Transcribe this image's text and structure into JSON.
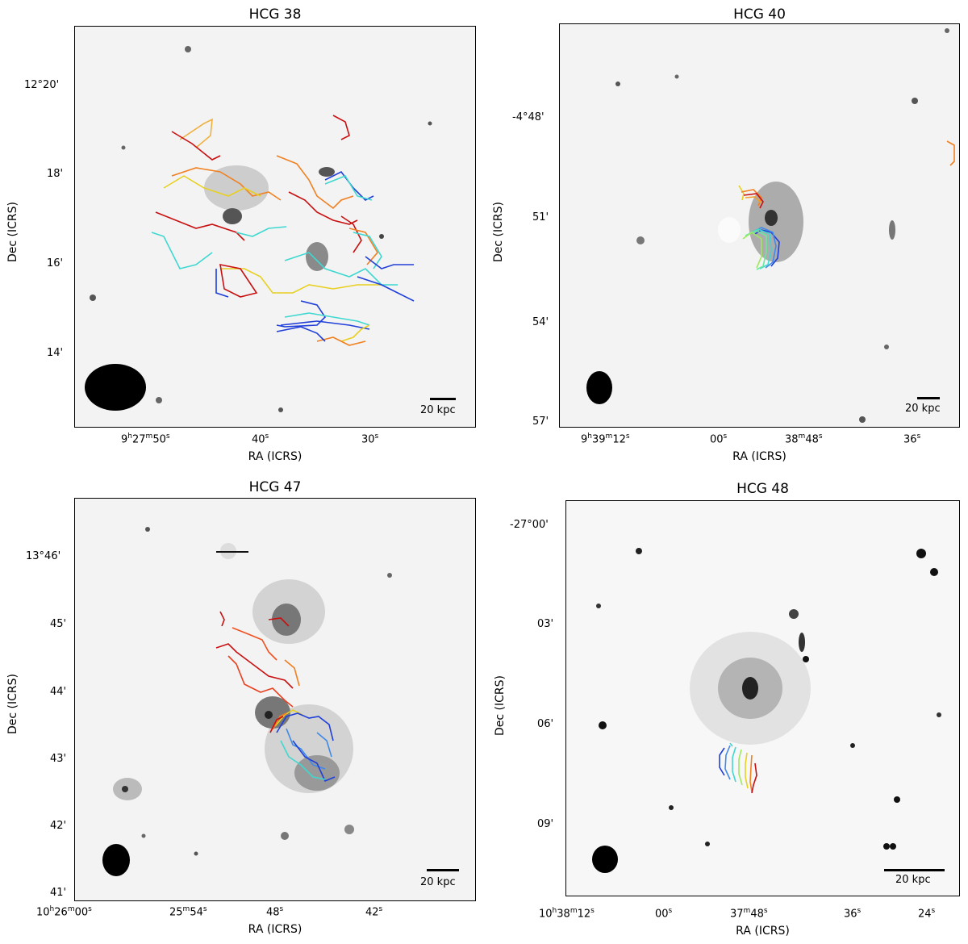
{
  "panels": [
    {
      "title": "HCG 38",
      "xlabel": "RA (ICRS)",
      "ylabel": "Dec (ICRS)",
      "scalebar": "20 kpc",
      "yticks": [
        "12°20'",
        "18'",
        "16'",
        "14'"
      ],
      "xticks": [
        {
          "h": "9",
          "m": "27",
          "s": "50"
        },
        {
          "s": "40"
        },
        {
          "s": "30"
        }
      ]
    },
    {
      "title": "HCG 40",
      "xlabel": "RA (ICRS)",
      "ylabel": "Dec (ICRS)",
      "scalebar": "20 kpc",
      "yticks": [
        "-4°48'",
        "51'",
        "54'",
        "57'"
      ],
      "xticks": [
        {
          "h": "9",
          "m": "39",
          "s": "12"
        },
        {
          "s": "00"
        },
        {
          "m": "38",
          "s": "48"
        },
        {
          "s": "36"
        }
      ]
    },
    {
      "title": "HCG 47",
      "xlabel": "RA (ICRS)",
      "ylabel": "Dec (ICRS)",
      "scalebar": "20 kpc",
      "yticks": [
        "13°46'",
        "45'",
        "44'",
        "43'",
        "42'",
        "41'"
      ],
      "xticks": [
        {
          "h": "10",
          "m": "26",
          "s": "00"
        },
        {
          "m": "25",
          "s": "54"
        },
        {
          "s": "48"
        },
        {
          "s": "42"
        }
      ]
    },
    {
      "title": "HCG 48",
      "xlabel": "RA (ICRS)",
      "ylabel": "Dec (ICRS)",
      "scalebar": "20 kpc",
      "yticks": [
        "-27°00'",
        "03'",
        "06'",
        "09'"
      ],
      "xticks": [
        {
          "h": "10",
          "m": "38",
          "s": "12"
        },
        {
          "s": "00"
        },
        {
          "m": "37",
          "s": "48"
        },
        {
          "s": "36"
        },
        {
          "s": "24"
        }
      ]
    }
  ],
  "colors": {
    "contour_blue": "#1f3fd8",
    "contour_cyan": "#3fd8d0",
    "contour_yellow": "#e8d020",
    "contour_orange": "#f08020",
    "contour_red": "#c81010"
  }
}
